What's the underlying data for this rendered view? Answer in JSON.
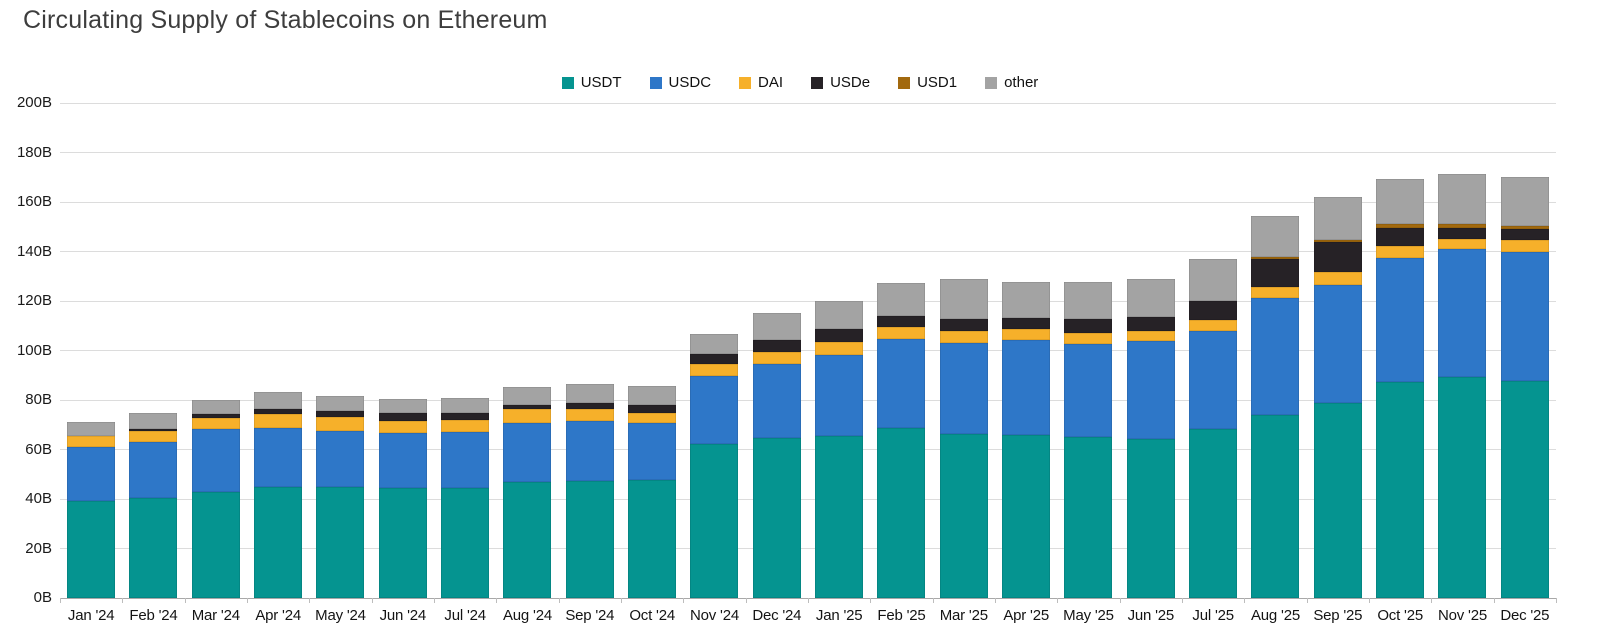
{
  "title": "Circulating Supply of Stablecoins on Ethereum",
  "chart_data": {
    "type": "bar",
    "stacked": true,
    "title": "Circulating Supply of Stablecoins on Ethereum",
    "xlabel": "",
    "ylabel": "",
    "ylim": [
      0,
      200
    ],
    "ytick_step": 20,
    "ytick_labels": [
      "0B",
      "20B",
      "40B",
      "60B",
      "80B",
      "100B",
      "120B",
      "140B",
      "160B",
      "180B",
      "200B"
    ],
    "grid": true,
    "legend_position": "top-center",
    "categories": [
      "Jan '24",
      "Feb '24",
      "Mar '24",
      "Apr '24",
      "May '24",
      "Jun '24",
      "Jul '24",
      "Aug '24",
      "Sep '24",
      "Oct '24",
      "Nov '24",
      "Dec '24",
      "Jan '25",
      "Feb '25",
      "Mar '25",
      "Apr '25",
      "May '25",
      "Jun '25",
      "Jul '25",
      "Aug '25",
      "Sep '25",
      "Oct '25",
      "Nov '25",
      "Dec '25"
    ],
    "series": [
      {
        "name": "USDT",
        "color": "#059490",
        "values": [
          39.0,
          40.3,
          42.7,
          45.0,
          45.0,
          44.3,
          44.3,
          46.7,
          47.3,
          47.7,
          62.2,
          64.8,
          65.6,
          68.6,
          66.3,
          65.9,
          64.9,
          64.1,
          68.2,
          73.9,
          78.7,
          87.2,
          89.4,
          87.8
        ]
      },
      {
        "name": "USDC",
        "color": "#2e77c8",
        "values": [
          22.0,
          22.9,
          25.5,
          23.8,
          22.5,
          22.2,
          22.9,
          23.9,
          24.3,
          22.9,
          27.6,
          29.7,
          32.6,
          35.9,
          36.9,
          38.3,
          37.7,
          39.7,
          39.8,
          47.2,
          47.8,
          50.3,
          51.5,
          51.9
        ]
      },
      {
        "name": "DAI",
        "color": "#f6b02a",
        "values": [
          4.5,
          4.4,
          4.7,
          5.4,
          5.8,
          5.1,
          4.7,
          5.6,
          4.6,
          4.3,
          4.7,
          5.0,
          5.4,
          4.9,
          4.7,
          4.4,
          4.6,
          4.2,
          4.3,
          4.4,
          5.3,
          4.7,
          4.2,
          4.9
        ]
      },
      {
        "name": "USDe",
        "color": "#262226",
        "values": [
          0.0,
          0.7,
          1.4,
          2.0,
          2.3,
          3.0,
          3.0,
          1.8,
          2.7,
          3.1,
          4.1,
          4.7,
          5.0,
          4.7,
          4.8,
          4.4,
          5.4,
          5.4,
          7.7,
          11.4,
          11.9,
          7.4,
          4.5,
          4.5
        ]
      },
      {
        "name": "USD1",
        "color": "#a2690e",
        "values": [
          0.0,
          0.0,
          0.0,
          0.0,
          0.0,
          0.0,
          0.0,
          0.0,
          0.0,
          0.0,
          0.0,
          0.0,
          0.0,
          0.0,
          0.0,
          0.0,
          0.0,
          0.0,
          0.0,
          0.8,
          0.9,
          1.4,
          1.4,
          1.2
        ]
      },
      {
        "name": "other",
        "color": "#a3a3a3",
        "values": [
          5.5,
          6.4,
          5.7,
          6.9,
          6.0,
          5.7,
          5.8,
          7.1,
          7.6,
          7.8,
          8.0,
          11.1,
          11.4,
          13.1,
          16.1,
          14.8,
          15.2,
          15.5,
          16.9,
          16.6,
          17.6,
          18.3,
          20.2,
          19.9
        ]
      }
    ]
  },
  "colors": {
    "grid_line": "#dcdcdc",
    "axis_line": "#a8a8a8",
    "title_text": "#3d3d3d",
    "tick_text": "#141414"
  }
}
